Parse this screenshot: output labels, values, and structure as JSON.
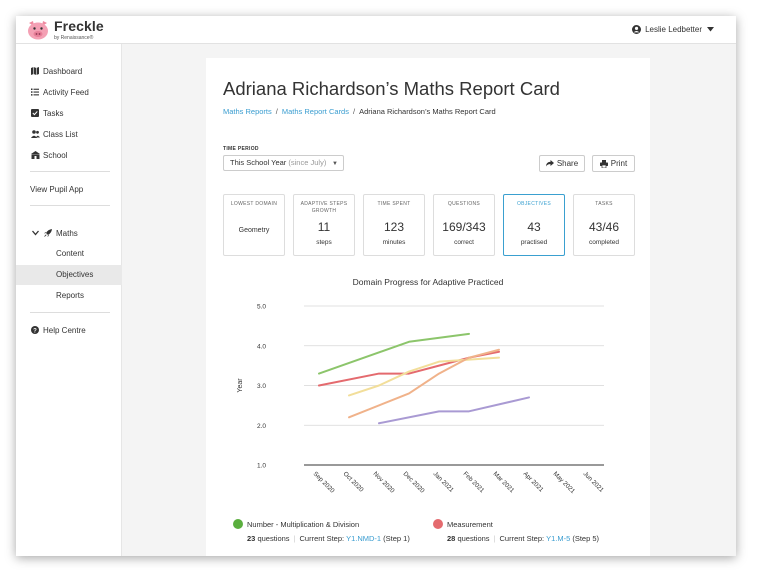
{
  "app": {
    "name": "Freckle",
    "sub": "by Renaissance®"
  },
  "user": {
    "name": "Leslie Ledbetter"
  },
  "sidebar": {
    "nav": [
      {
        "label": "Dashboard",
        "icon": "map-icon"
      },
      {
        "label": "Activity Feed",
        "icon": "feed-icon"
      },
      {
        "label": "Tasks",
        "icon": "tasks-icon"
      },
      {
        "label": "Class List",
        "icon": "users-icon"
      },
      {
        "label": "School",
        "icon": "school-icon"
      }
    ],
    "view_pupil_app": "View Pupil App",
    "subject": "Maths",
    "subject_items": [
      "Content",
      "Objectives",
      "Reports"
    ],
    "active_item": "Objectives",
    "help": "Help Centre"
  },
  "page": {
    "title": "Adriana Richardson’s Maths Report Card",
    "breadcrumb": [
      "Maths Reports",
      "Maths Report Cards",
      "Adriana Richardson’s Maths Report Card"
    ],
    "time_period_label": "TIME PERIOD",
    "time_period_value": "This School Year",
    "time_period_hint": "(since July)",
    "share_label": "Share",
    "print_label": "Print"
  },
  "stats": [
    {
      "label": "LOWEST DOMAIN",
      "value": "",
      "unit": "Geometry"
    },
    {
      "label": "ADAPTIVE STEPS GROWTH",
      "value": "11",
      "unit": "steps"
    },
    {
      "label": "TIME SPENT",
      "value": "123",
      "unit": "minutes"
    },
    {
      "label": "QUESTIONS",
      "value": "169/343",
      "unit": "correct"
    },
    {
      "label": "OBJECTIVES",
      "value": "43",
      "unit": "practised"
    },
    {
      "label": "TASKS",
      "value": "43/46",
      "unit": "completed"
    }
  ],
  "selected_stat": "OBJECTIVES",
  "chart_data": {
    "type": "line",
    "title": "Domain Progress for Adaptive Practiced",
    "ylabel": "Year",
    "xlabel": "",
    "categories": [
      "Sep 2020",
      "Oct 2020",
      "Nov 2020",
      "Dec 2020",
      "Jan 2021",
      "Feb 2021",
      "Mar 2021",
      "Apr 2021",
      "May 2021",
      "Jun 2021"
    ],
    "yticks": [
      "5.0",
      "4.0",
      "3.0",
      "2.0",
      "1.0"
    ],
    "ylim": [
      1.0,
      5.0
    ],
    "grid": true,
    "series": [
      {
        "name": "Number - Multiplication & Division",
        "color": "#8cc56b",
        "points": [
          [
            0,
            3.3
          ],
          [
            3,
            4.1
          ],
          [
            5,
            4.3
          ]
        ]
      },
      {
        "name": "Measurement",
        "color": "#e46a6e",
        "points": [
          [
            0,
            3.0
          ],
          [
            2,
            3.3
          ],
          [
            3,
            3.3
          ],
          [
            4,
            3.5
          ],
          [
            5,
            3.7
          ],
          [
            6,
            3.85
          ]
        ]
      },
      {
        "name": "",
        "color": "#f2de9a",
        "points": [
          [
            1,
            2.75
          ],
          [
            2,
            3.0
          ],
          [
            3,
            3.35
          ],
          [
            4,
            3.6
          ],
          [
            5,
            3.65
          ],
          [
            6,
            3.7
          ]
        ]
      },
      {
        "name": "",
        "color": "#f0b28a",
        "points": [
          [
            1,
            2.2
          ],
          [
            3,
            2.8
          ],
          [
            4,
            3.3
          ],
          [
            5,
            3.7
          ],
          [
            6,
            3.9
          ]
        ]
      },
      {
        "name": "",
        "color": "#a99ad3",
        "points": [
          [
            2,
            2.05
          ],
          [
            4,
            2.35
          ],
          [
            5,
            2.35
          ],
          [
            7,
            2.7
          ]
        ]
      }
    ]
  },
  "legend": [
    {
      "name": "Number - Multiplication & Division",
      "color": "#5aae3e",
      "count": "23",
      "questions_label": "questions",
      "step_label": "Current Step:",
      "step_code": "Y1.NMD-1",
      "step_num": "(Step 1)"
    },
    {
      "name": "Measurement",
      "color": "#e46a6e",
      "count": "28",
      "questions_label": "questions",
      "step_label": "Current Step:",
      "step_code": "Y1.M-5",
      "step_num": "(Step 5)"
    }
  ]
}
